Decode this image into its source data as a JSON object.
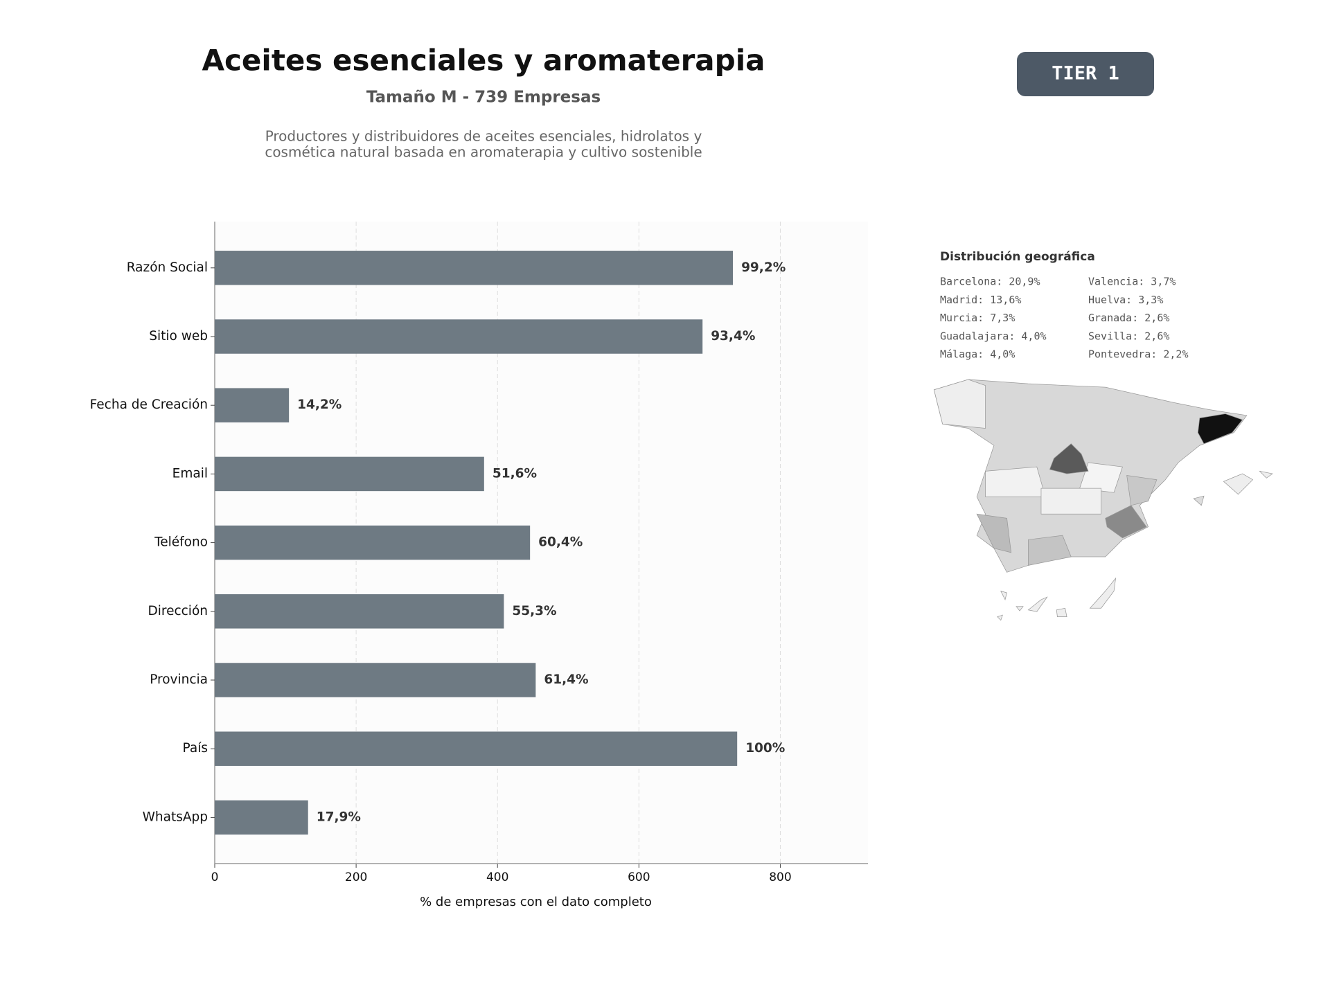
{
  "chart_data": {
    "type": "bar",
    "orientation": "horizontal",
    "title": "Aceites esenciales y aromaterapia",
    "subtitle": "Tamaño M - 739 Empresas",
    "description": [
      "Productores y distribuidores de aceites esenciales, hidrolatos y",
      "cosmética natural basada en aromaterapia y cultivo sostenible"
    ],
    "badge": "TIER 1",
    "categories": [
      "Razón Social",
      "Sitio web",
      "Fecha de Creación",
      "Email",
      "Teléfono",
      "Dirección",
      "Provincia",
      "País",
      "WhatsApp"
    ],
    "values": [
      733,
      690,
      105,
      381,
      446,
      409,
      454,
      739,
      132
    ],
    "value_labels": [
      "99,2%",
      "93,4%",
      "14,2%",
      "51,6%",
      "60,4%",
      "55,3%",
      "61,4%",
      "100%",
      "17,9%"
    ],
    "color": "#6e7a83",
    "xlabel": "% de empresas con el dato completo",
    "xlim": [
      0,
      924
    ],
    "xticks": [
      0,
      200,
      400,
      600,
      800
    ],
    "grid": true,
    "geo": {
      "title": "Distribución geográfica",
      "items": [
        "Barcelona: 20,9%",
        "Madrid: 13,6%",
        "Murcia: 7,3%",
        "Guadalajara: 4,0%",
        "Málaga: 4,0%",
        "Valencia: 3,7%",
        "Huelva: 3,3%",
        "Granada: 2,6%",
        "Sevilla: 2,6%",
        "Pontevedra: 2,2%"
      ]
    }
  }
}
